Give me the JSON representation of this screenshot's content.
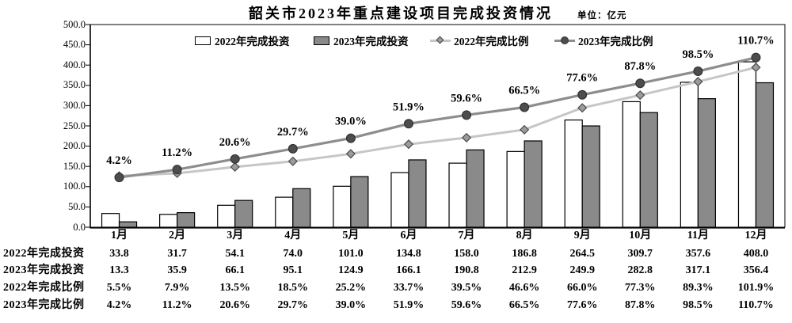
{
  "title": "韶关市2023年重点建设项目完成投资情况",
  "unit_label": "单位：亿元",
  "chart_data": {
    "type": "bar+line combo",
    "categories": [
      "1月",
      "2月",
      "3月",
      "4月",
      "5月",
      "6月",
      "7月",
      "8月",
      "9月",
      "10月",
      "11月",
      "12月"
    ],
    "series": [
      {
        "name": "2022年完成投资",
        "chart_type": "bar",
        "axis": "primary",
        "values": [
          33.8,
          31.7,
          54.1,
          74.0,
          101.0,
          134.8,
          158.0,
          186.8,
          264.5,
          309.7,
          357.6,
          408.0
        ]
      },
      {
        "name": "2023年完成投资",
        "chart_type": "bar",
        "axis": "primary",
        "values": [
          13.3,
          35.9,
          66.1,
          95.1,
          124.9,
          166.1,
          190.8,
          212.9,
          249.9,
          282.8,
          317.1,
          356.4
        ]
      },
      {
        "name": "2022年完成比例",
        "chart_type": "line",
        "axis": "secondary",
        "marker": "diamond",
        "unit": "%",
        "values": [
          5.5,
          7.9,
          13.5,
          18.5,
          25.2,
          33.7,
          39.5,
          46.6,
          66.0,
          77.3,
          89.3,
          101.9
        ]
      },
      {
        "name": "2023年完成比例",
        "chart_type": "line",
        "axis": "secondary",
        "marker": "circle",
        "unit": "%",
        "data_labels": true,
        "values": [
          4.2,
          11.2,
          20.6,
          29.7,
          39.0,
          51.9,
          59.6,
          66.5,
          77.6,
          87.8,
          98.5,
          110.7
        ]
      }
    ],
    "value_axis": {
      "min": 0,
      "max": 500,
      "step": 50,
      "tick_labels": [
        "0.0",
        "50.0",
        "100.0",
        "150.0",
        "200.0",
        "250.0",
        "300.0",
        "350.0",
        "400.0",
        "450.0",
        "500.0"
      ]
    },
    "secondary_axis": {
      "min": -40,
      "max": 140,
      "hidden": true
    },
    "legend_position": "top-inside",
    "grid": "off"
  },
  "table": {
    "rows": [
      {
        "label": "2022年完成投资",
        "values": [
          "33.8",
          "31.7",
          "54.1",
          "74.0",
          "101.0",
          "134.8",
          "158.0",
          "186.8",
          "264.5",
          "309.7",
          "357.6",
          "408.0"
        ]
      },
      {
        "label": "2023年完成投资",
        "values": [
          "13.3",
          "35.9",
          "66.1",
          "95.1",
          "124.9",
          "166.1",
          "190.8",
          "212.9",
          "249.9",
          "282.8",
          "317.1",
          "356.4"
        ]
      },
      {
        "label": "2022年完成比例",
        "values": [
          "5.5%",
          "7.9%",
          "13.5%",
          "18.5%",
          "25.2%",
          "33.7%",
          "39.5%",
          "46.6%",
          "66.0%",
          "77.3%",
          "89.3%",
          "101.9%"
        ]
      },
      {
        "label": "2023年完成比例",
        "values": [
          "4.2%",
          "11.2%",
          "20.6%",
          "29.7%",
          "39.0%",
          "51.9%",
          "59.6%",
          "66.5%",
          "77.6%",
          "87.8%",
          "98.5%",
          "110.7%"
        ]
      }
    ]
  },
  "colors": {
    "bar_2022_fill": "#ffffff",
    "bar_2023_fill": "#8a8a8a",
    "bar_border": "#000000",
    "line_2022": "#c6c6c6",
    "marker_2022_fill": "#9c9c9c",
    "marker_2022_border": "#4a4a4a",
    "line_2023": "#8d8d8d",
    "marker_2023_fill": "#4d4d4d",
    "marker_2023_border": "#333333",
    "axis": "#000000",
    "text": "#000000"
  }
}
